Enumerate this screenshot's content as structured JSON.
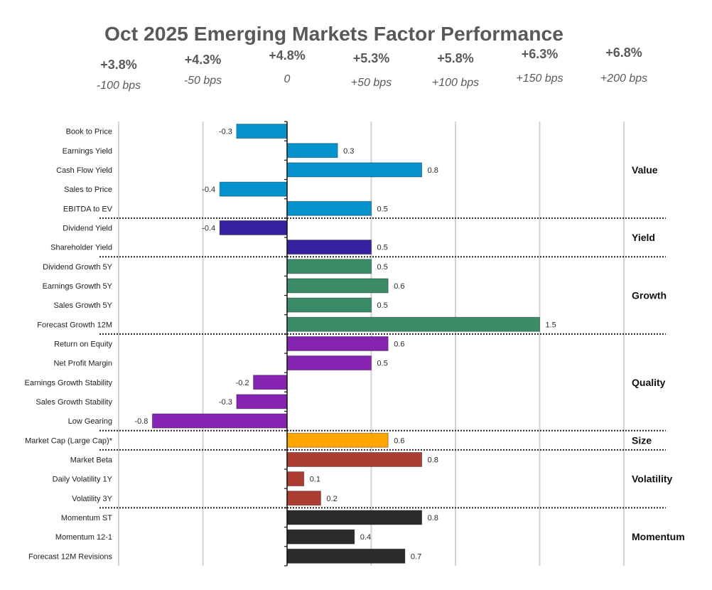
{
  "title": "Oct 2025 Emerging Markets Factor Performance",
  "chart_data": {
    "type": "bar",
    "orientation": "horizontal",
    "title": "Oct 2025 Emerging Markets Factor Performance",
    "xlabel": "",
    "ylabel": "",
    "xlim": [
      -1.0,
      2.0
    ],
    "grid": true,
    "legend": "none",
    "x_gridlines": [
      -1.0,
      -0.5,
      0.5,
      1.0,
      1.5,
      2.0
    ],
    "top_axis_labels": [
      {
        "at": -1.0,
        "return": "+3.8%",
        "spread": "-100 bps"
      },
      {
        "at": -0.5,
        "return": "+4.3%",
        "spread": "-50 bps"
      },
      {
        "at": 0.0,
        "return": "+4.8%",
        "spread": "0"
      },
      {
        "at": 0.5,
        "return": "+5.3%",
        "spread": "+50 bps"
      },
      {
        "at": 1.0,
        "return": "+5.8%",
        "spread": "+100 bps"
      },
      {
        "at": 1.5,
        "return": "+6.3%",
        "spread": "+150 bps"
      },
      {
        "at": 2.0,
        "return": "+6.8%",
        "spread": "+200 bps"
      }
    ],
    "groups": [
      {
        "name": "Value",
        "color": "#0493CC",
        "factors": [
          {
            "label": "Book to Price",
            "value": -0.3
          },
          {
            "label": "Earnings Yield",
            "value": 0.3
          },
          {
            "label": "Cash Flow Yield",
            "value": 0.8
          },
          {
            "label": "Sales to Price",
            "value": -0.4
          },
          {
            "label": "EBITDA to EV",
            "value": 0.5
          }
        ]
      },
      {
        "name": "Yield",
        "color": "#3522A0",
        "factors": [
          {
            "label": "Dividend Yield",
            "value": -0.4
          },
          {
            "label": "Shareholder Yield",
            "value": 0.5
          }
        ]
      },
      {
        "name": "Growth",
        "color": "#3A8C68",
        "factors": [
          {
            "label": "Dividend Growth 5Y",
            "value": 0.5
          },
          {
            "label": "Earnings Growth 5Y",
            "value": 0.6
          },
          {
            "label": "Sales Growth 5Y",
            "value": 0.5
          },
          {
            "label": "Forecast Growth 12M",
            "value": 1.5
          }
        ]
      },
      {
        "name": "Quality",
        "color": "#8424B0",
        "factors": [
          {
            "label": "Return on Equity",
            "value": 0.6
          },
          {
            "label": "Net Profit Margin",
            "value": 0.5
          },
          {
            "label": "Earnings Growth Stability",
            "value": -0.2
          },
          {
            "label": "Sales Growth Stability",
            "value": -0.3
          },
          {
            "label": "Low Gearing",
            "value": -0.8
          }
        ]
      },
      {
        "name": "Size",
        "color": "#FFA500",
        "factors": [
          {
            "label": "Market Cap (Large Cap)*",
            "value": 0.6
          }
        ]
      },
      {
        "name": "Volatility",
        "color": "#AC3D31",
        "factors": [
          {
            "label": "Market Beta",
            "value": 0.8
          },
          {
            "label": "Daily Volatility 1Y",
            "value": 0.1
          },
          {
            "label": "Volatility 3Y",
            "value": 0.2
          }
        ]
      },
      {
        "name": "Momentum",
        "color": "#2B2B2B",
        "factors": [
          {
            "label": "Momentum ST",
            "value": 0.8
          },
          {
            "label": "Momentum 12-1",
            "value": 0.4
          },
          {
            "label": "Forecast 12M Revisions",
            "value": 0.7
          }
        ]
      }
    ]
  }
}
